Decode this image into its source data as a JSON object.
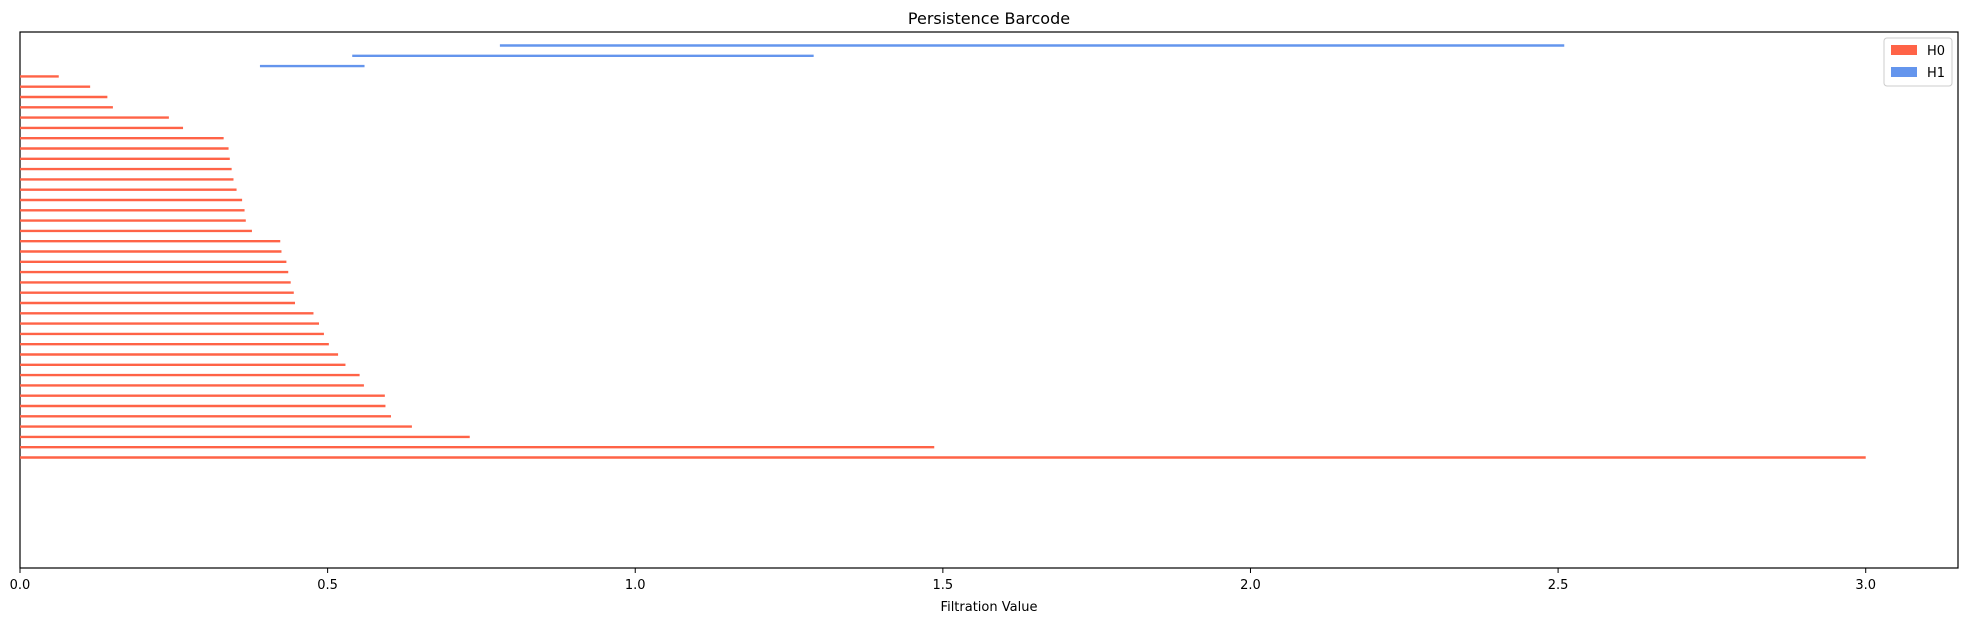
{
  "chart_data": {
    "type": "barcode",
    "title": "Persistence Barcode",
    "xlabel": "Filtration Value",
    "ylabel": "",
    "xlim": [
      0,
      3.15
    ],
    "xticks": [
      "0.0",
      "0.5",
      "1.0",
      "1.5",
      "2.0",
      "2.5",
      "3.0"
    ],
    "legend_position": "top-right",
    "grid": false,
    "series": [
      {
        "name": "H1",
        "color": "#6495ED",
        "bars": [
          [
            0.78,
            2.51
          ],
          [
            0.54,
            1.29
          ],
          [
            0.39,
            0.56
          ]
        ]
      },
      {
        "name": "H0",
        "color": "#FF6347",
        "bars": [
          [
            0,
            0.063
          ],
          [
            0,
            0.114
          ],
          [
            0,
            0.142
          ],
          [
            0,
            0.151
          ],
          [
            0,
            0.242
          ],
          [
            0,
            0.265
          ],
          [
            0,
            0.331
          ],
          [
            0,
            0.339
          ],
          [
            0,
            0.341
          ],
          [
            0,
            0.344
          ],
          [
            0,
            0.347
          ],
          [
            0,
            0.352
          ],
          [
            0,
            0.361
          ],
          [
            0,
            0.365
          ],
          [
            0,
            0.367
          ],
          [
            0,
            0.377
          ],
          [
            0,
            0.423
          ],
          [
            0,
            0.425
          ],
          [
            0,
            0.433
          ],
          [
            0,
            0.436
          ],
          [
            0,
            0.44
          ],
          [
            0,
            0.445
          ],
          [
            0,
            0.447
          ],
          [
            0,
            0.477
          ],
          [
            0,
            0.486
          ],
          [
            0,
            0.494
          ],
          [
            0,
            0.502
          ],
          [
            0,
            0.517
          ],
          [
            0,
            0.529
          ],
          [
            0,
            0.552
          ],
          [
            0,
            0.559
          ],
          [
            0,
            0.593
          ],
          [
            0,
            0.594
          ],
          [
            0,
            0.603
          ],
          [
            0,
            0.637
          ],
          [
            0,
            0.731
          ],
          [
            0,
            1.486
          ],
          [
            0,
            3.0
          ]
        ]
      }
    ]
  }
}
